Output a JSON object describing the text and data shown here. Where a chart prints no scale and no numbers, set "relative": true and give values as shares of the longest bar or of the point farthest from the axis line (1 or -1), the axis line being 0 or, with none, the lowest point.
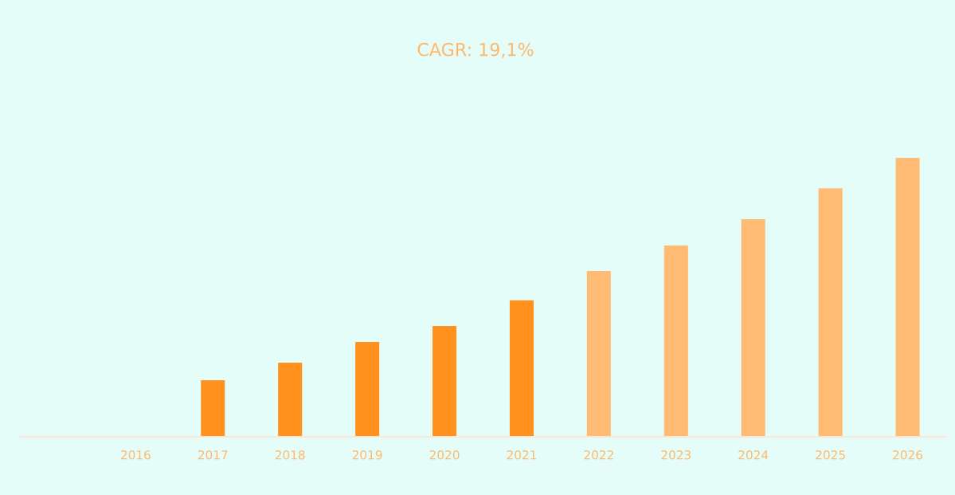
{
  "chart_data": {
    "type": "bar",
    "title": "CAGR: 19,1%",
    "relative": true,
    "categories": [
      null,
      "2016",
      "2017",
      "2018",
      "2019",
      "2020",
      "2021",
      "2022",
      "2023",
      "2024",
      "2025",
      "2026"
    ],
    "values": [
      null,
      null,
      0.203,
      0.266,
      0.34,
      0.397,
      0.489,
      0.594,
      0.686,
      0.78,
      0.891,
      1
    ],
    "colors": [
      "#ff911c",
      "#ff911c",
      "#ff911c",
      "#ff911c",
      "#ff911c",
      "#ff911c",
      "#ff911c",
      "#ffbb73",
      "#ffbb73",
      "#ffbb73",
      "#ffbb73",
      "#ffbb73"
    ],
    "grid": false,
    "legend": false
  }
}
